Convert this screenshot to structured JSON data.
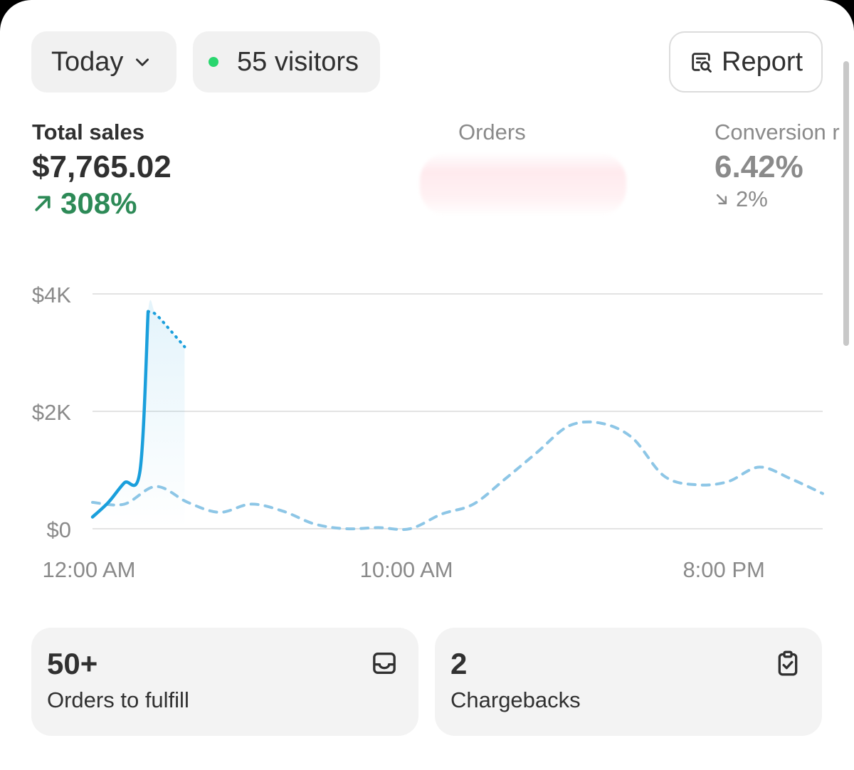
{
  "toolbar": {
    "date_range": "Today",
    "visitors_label": "55 visitors",
    "report_label": "Report"
  },
  "metrics": {
    "total_sales": {
      "label": "Total sales",
      "value": "$7,765.02",
      "change": "308%",
      "direction": "up"
    },
    "orders": {
      "label": "Orders"
    },
    "conversion": {
      "label": "Conversion r",
      "value": "6.42%",
      "change": "2%",
      "direction": "down"
    }
  },
  "colors": {
    "accent_blue": "#1a9fdc",
    "comparison_blue": "#8dc6e6",
    "positive_green": "#2d8a57",
    "live_dot": "#29d66e",
    "muted_text": "#8a8a8a"
  },
  "chart_data": {
    "type": "line",
    "x_unit": "hours since 12:00 AM",
    "x_tick_labels": [
      "12:00 AM",
      "10:00 AM",
      "8:00 PM"
    ],
    "x_ticks": [
      0,
      10,
      20
    ],
    "y_tick_labels": [
      "$4K",
      "$2K",
      "$0"
    ],
    "y_ticks": [
      4000,
      2000,
      0
    ],
    "xlim": [
      0,
      23
    ],
    "ylim": [
      0,
      4000
    ],
    "grid": true,
    "series": [
      {
        "style": "solid",
        "color": "#1a9fdc",
        "x": [
          0,
          0.5,
          1,
          1.5,
          1.75
        ],
        "y": [
          200,
          450,
          780,
          1000,
          3700
        ]
      },
      {
        "style": "dotted-continuation",
        "color": "#1a9fdc",
        "x": [
          2,
          2.5,
          2.9
        ],
        "y": [
          3650,
          3350,
          3100
        ]
      },
      {
        "style": "dashed",
        "color": "#8dc6e6",
        "x": [
          0,
          1,
          2,
          3,
          4,
          5,
          6,
          7,
          8,
          9,
          10,
          11,
          12,
          13,
          14,
          15,
          16,
          17,
          18,
          19,
          20,
          21,
          22,
          23
        ],
        "y": [
          450,
          420,
          720,
          450,
          280,
          420,
          300,
          80,
          0,
          20,
          0,
          250,
          420,
          850,
          1300,
          1750,
          1800,
          1550,
          900,
          750,
          800,
          1050,
          850,
          600
        ]
      }
    ]
  },
  "cards": [
    {
      "number": "50+",
      "caption": "Orders to fulfill",
      "icon": "inbox-icon"
    },
    {
      "number": "2",
      "caption": "Chargebacks",
      "icon": "clipboard-check-icon"
    }
  ]
}
